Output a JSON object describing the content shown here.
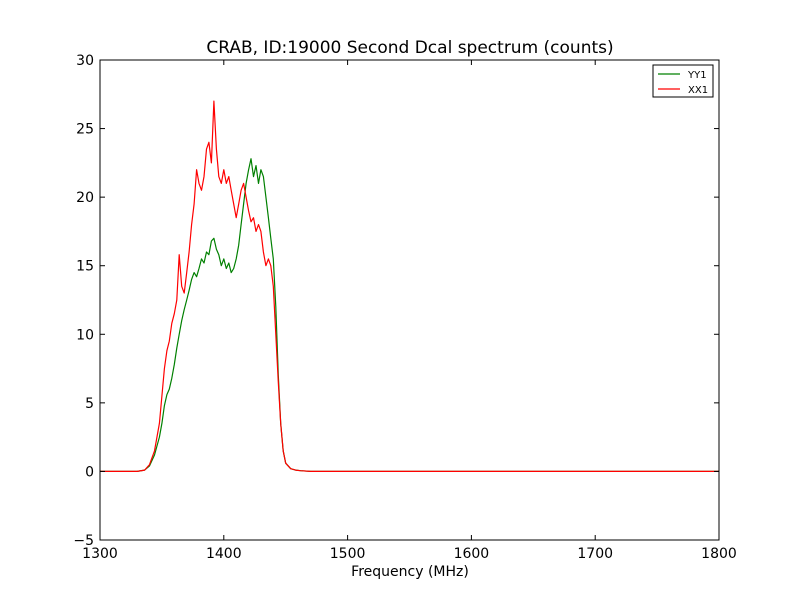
{
  "chart_data": {
    "type": "line",
    "title": "CRAB, ID:19000 Second Dcal spectrum (counts)",
    "xlabel": "Frequency (MHz)",
    "ylabel": "",
    "xlim": [
      1300,
      1800
    ],
    "ylim": [
      -5,
      30
    ],
    "xticks": [
      1300,
      1400,
      1500,
      1600,
      1700,
      1800
    ],
    "yticks": [
      -5,
      0,
      5,
      10,
      15,
      20,
      25,
      30
    ],
    "xtick_labels": [
      "1300",
      "1400",
      "1500",
      "1600",
      "1700",
      "1800"
    ],
    "ytick_labels": [
      "−5",
      "0",
      "5",
      "10",
      "15",
      "20",
      "25",
      "30"
    ],
    "grid": false,
    "legend_position": "top-right",
    "series": [
      {
        "name": "YY1",
        "color": "#008000",
        "x": [
          1300,
          1330,
          1336,
          1340,
          1344,
          1348,
          1350,
          1352,
          1354,
          1356,
          1358,
          1360,
          1362,
          1364,
          1366,
          1368,
          1370,
          1372,
          1374,
          1376,
          1378,
          1380,
          1382,
          1384,
          1386,
          1388,
          1390,
          1392,
          1394,
          1396,
          1398,
          1400,
          1402,
          1404,
          1406,
          1408,
          1410,
          1412,
          1414,
          1416,
          1418,
          1420,
          1422,
          1424,
          1426,
          1428,
          1430,
          1432,
          1434,
          1436,
          1438,
          1440,
          1442,
          1444,
          1446,
          1448,
          1450,
          1454,
          1458,
          1462,
          1470,
          1500,
          1550,
          1600,
          1650,
          1700,
          1750,
          1800
        ],
        "y": [
          0,
          0,
          0.1,
          0.4,
          1.2,
          2.5,
          3.5,
          4.8,
          5.6,
          6.0,
          6.8,
          7.8,
          9.0,
          10.0,
          11.0,
          11.8,
          12.5,
          13.2,
          14.0,
          14.5,
          14.2,
          14.8,
          15.5,
          15.2,
          16.0,
          15.8,
          16.8,
          17.0,
          16.2,
          15.8,
          15.0,
          15.5,
          14.8,
          15.2,
          14.5,
          14.8,
          15.5,
          16.5,
          18.0,
          19.5,
          21.0,
          22.0,
          22.8,
          21.5,
          22.3,
          21.0,
          22.0,
          21.5,
          20.0,
          18.5,
          17.0,
          15.5,
          12.0,
          7.0,
          3.5,
          1.5,
          0.6,
          0.2,
          0.1,
          0.05,
          0,
          0,
          0,
          0,
          0,
          0,
          0,
          0
        ]
      },
      {
        "name": "XX1",
        "color": "#ff0000",
        "x": [
          1300,
          1330,
          1336,
          1340,
          1344,
          1348,
          1350,
          1352,
          1354,
          1356,
          1358,
          1360,
          1362,
          1364,
          1366,
          1368,
          1370,
          1372,
          1374,
          1376,
          1378,
          1380,
          1382,
          1384,
          1386,
          1388,
          1390,
          1392,
          1394,
          1396,
          1398,
          1400,
          1402,
          1404,
          1406,
          1408,
          1410,
          1412,
          1414,
          1416,
          1418,
          1420,
          1422,
          1424,
          1426,
          1428,
          1430,
          1432,
          1434,
          1436,
          1438,
          1440,
          1442,
          1444,
          1446,
          1448,
          1450,
          1454,
          1458,
          1462,
          1470,
          1500,
          1550,
          1600,
          1650,
          1700,
          1750,
          1800
        ],
        "y": [
          0,
          0,
          0.1,
          0.5,
          1.5,
          3.5,
          5.5,
          7.5,
          8.8,
          9.5,
          10.8,
          11.5,
          12.5,
          15.8,
          13.5,
          13.0,
          14.5,
          16.0,
          18.0,
          19.5,
          22.0,
          21.0,
          20.5,
          21.5,
          23.5,
          24.0,
          22.5,
          27.0,
          23.5,
          21.5,
          21.0,
          22.0,
          21.0,
          21.5,
          20.5,
          19.5,
          18.5,
          19.5,
          20.5,
          21.0,
          20.0,
          19.0,
          18.2,
          18.5,
          17.5,
          18.0,
          17.5,
          16.0,
          15.0,
          15.5,
          15.0,
          13.5,
          10.0,
          6.5,
          3.5,
          1.5,
          0.6,
          0.2,
          0.1,
          0.05,
          0,
          0,
          0,
          0,
          0,
          0,
          0,
          0
        ]
      }
    ]
  }
}
